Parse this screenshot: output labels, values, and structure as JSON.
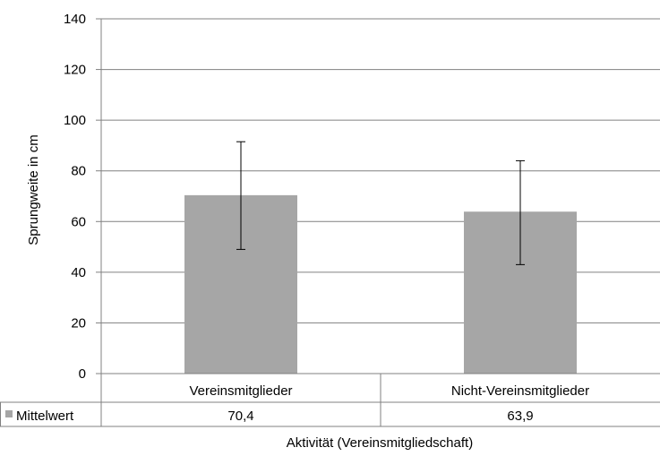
{
  "chart_data": {
    "type": "bar",
    "categories": [
      "Vereinsmitglieder",
      "Nicht-Vereinsmitglieder"
    ],
    "series": [
      {
        "name": "Mittelwert",
        "values": [
          70.4,
          63.9
        ],
        "value_labels": [
          "70,4",
          "63,9"
        ],
        "error_low": [
          49,
          43
        ],
        "error_high": [
          91.5,
          84
        ],
        "color": "#a6a6a6"
      }
    ],
    "xlabel": "Aktivität (Vereinsmitgliedschaft)",
    "ylabel": "Sprungweite in cm",
    "ylim": [
      0,
      140
    ],
    "yticks": [
      0,
      20,
      40,
      60,
      80,
      100,
      120,
      140
    ],
    "grid": true,
    "legend": "data-table",
    "axis_color": "#808080",
    "grid_color": "#808080"
  }
}
